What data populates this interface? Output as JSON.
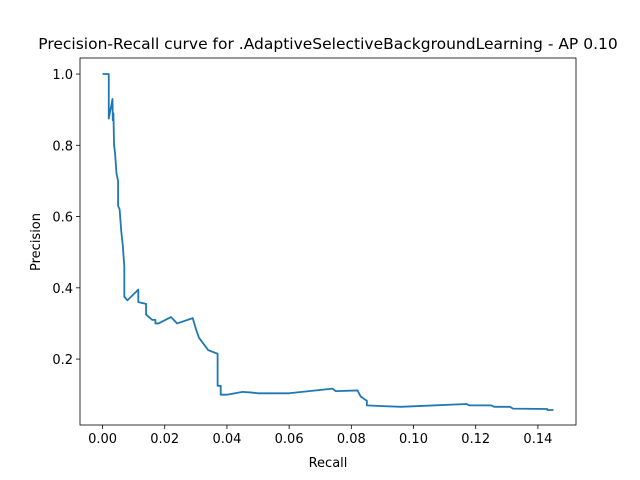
{
  "chart_data": {
    "type": "line",
    "title": "Precision-Recall curve for .AdaptiveSelectiveBackgroundLearning - AP 0.10",
    "x_label": "Recall",
    "y_label": "Precision",
    "x": [
      0,
      0.002,
      0.002,
      0.003,
      0.0032,
      0.0033,
      0.0035,
      0.0037,
      0.004,
      0.0045,
      0.005,
      0.005,
      0.0055,
      0.006,
      0.0065,
      0.007,
      0.007,
      0.008,
      0.0115,
      0.0115,
      0.014,
      0.014,
      0.016,
      0.017,
      0.017,
      0.018,
      0.022,
      0.024,
      0.029,
      0.03,
      0.031,
      0.034,
      0.037,
      0.037,
      0.038,
      0.038,
      0.04,
      0.045,
      0.048,
      0.05,
      0.06,
      0.074,
      0.075,
      0.082,
      0.083,
      0.085,
      0.085,
      0.09,
      0.096,
      0.117,
      0.118,
      0.125,
      0.126,
      0.131,
      0.132,
      0.143,
      0.143,
      0.145
    ],
    "series": [
      {
        "name": "Precision",
        "color": "#1f77b4",
        "values": [
          1.0,
          1.0,
          0.875,
          0.92,
          0.93,
          0.87,
          0.89,
          0.8,
          0.78,
          0.72,
          0.7,
          0.63,
          0.62,
          0.56,
          0.52,
          0.46,
          0.375,
          0.365,
          0.395,
          0.36,
          0.355,
          0.325,
          0.31,
          0.31,
          0.3,
          0.3,
          0.318,
          0.3,
          0.315,
          0.285,
          0.26,
          0.225,
          0.215,
          0.125,
          0.125,
          0.1,
          0.1,
          0.108,
          0.106,
          0.104,
          0.104,
          0.117,
          0.11,
          0.112,
          0.095,
          0.083,
          0.07,
          0.068,
          0.066,
          0.074,
          0.07,
          0.07,
          0.066,
          0.066,
          0.061,
          0.06,
          0.057,
          0.057
        ]
      }
    ],
    "xlim": [
      -0.00725,
      0.15225
    ],
    "ylim": [
      0.015,
      1.045
    ],
    "xticks": [
      {
        "value": 0,
        "label": "0.00"
      },
      {
        "value": 0.02,
        "label": "0.02"
      },
      {
        "value": 0.04,
        "label": "0.04"
      },
      {
        "value": 0.06,
        "label": "0.06"
      },
      {
        "value": 0.08,
        "label": "0.08"
      },
      {
        "value": 0.1,
        "label": "0.10"
      },
      {
        "value": 0.12,
        "label": "0.12"
      },
      {
        "value": 0.14,
        "label": "0.14"
      }
    ],
    "yticks": [
      0.2,
      0.4,
      0.6,
      0.8,
      {
        "value": 1.0,
        "label": "1.0"
      }
    ],
    "grid": false
  }
}
